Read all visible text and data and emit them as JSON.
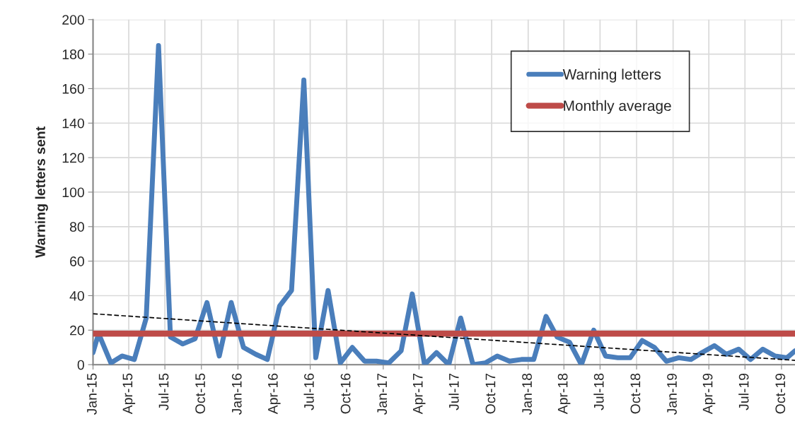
{
  "chart_data": {
    "type": "line",
    "ylabel": "Warning letters sent",
    "series": [
      {
        "name": "Warning letters",
        "color": "#4a7ebb",
        "x": [
          "2015-01-01",
          "2015-01-15",
          "2015-02-15",
          "2015-03-15",
          "2015-04-15",
          "2015-05-15",
          "2015-06-15",
          "2015-07-15",
          "2015-08-15",
          "2015-09-15",
          "2015-10-15",
          "2015-11-15",
          "2015-12-15",
          "2016-01-15",
          "2016-02-15",
          "2016-03-15",
          "2016-04-15",
          "2016-05-15",
          "2016-06-15",
          "2016-07-15",
          "2016-08-15",
          "2016-09-15",
          "2016-10-15",
          "2016-11-15",
          "2016-12-15",
          "2017-01-15",
          "2017-02-15",
          "2017-03-15",
          "2017-04-15",
          "2017-05-15",
          "2017-06-15",
          "2017-07-15",
          "2017-08-15",
          "2017-09-15",
          "2017-10-15",
          "2017-11-15",
          "2017-12-15",
          "2018-01-15",
          "2018-02-15",
          "2018-03-15",
          "2018-04-15",
          "2018-05-15",
          "2018-06-15",
          "2018-07-15",
          "2018-08-15",
          "2018-09-15",
          "2018-10-15",
          "2018-11-15",
          "2018-12-15",
          "2019-01-15",
          "2019-02-15",
          "2019-03-15",
          "2019-04-15",
          "2019-05-15",
          "2019-06-15",
          "2019-07-15",
          "2019-08-15",
          "2019-09-15",
          "2019-10-15",
          "2019-11-04"
        ],
        "values": [
          7,
          18,
          1,
          5,
          3,
          27,
          185,
          16,
          12,
          15,
          36,
          5,
          36,
          10,
          6,
          3,
          34,
          43,
          165,
          4,
          43,
          1,
          10,
          2,
          2,
          1,
          8,
          41,
          0,
          7,
          0,
          27,
          0,
          1,
          5,
          2,
          3,
          3,
          28,
          16,
          13,
          0,
          20,
          5,
          4,
          4,
          14,
          10,
          2,
          4,
          3,
          7,
          11,
          6,
          9,
          3,
          9,
          5,
          4,
          8
        ]
      },
      {
        "type": "line",
        "color": "#000000",
        "line_style": "dashed",
        "x": [
          "2015-01-01",
          "2019-11-04"
        ],
        "values": [
          29.5,
          2.5
        ]
      }
    ],
    "ref_lines": [
      {
        "axis": "y",
        "value": 18,
        "label": "Monthly average",
        "color": "#be4b48"
      }
    ],
    "xlim": [
      "2015-01-01",
      "2019-11-04"
    ],
    "xticks": [
      {
        "value": "2015-01-01",
        "label": "Jan-15"
      },
      {
        "value": "2015-04-01",
        "label": "Apr-15"
      },
      {
        "value": "2015-07-01",
        "label": "Jul-15"
      },
      {
        "value": "2015-10-01",
        "label": "Oct-15"
      },
      {
        "value": "2016-01-01",
        "label": "Jan-16"
      },
      {
        "value": "2016-04-01",
        "label": "Apr-16"
      },
      {
        "value": "2016-07-01",
        "label": "Jul-16"
      },
      {
        "value": "2016-10-01",
        "label": "Oct-16"
      },
      {
        "value": "2017-01-01",
        "label": "Jan-17"
      },
      {
        "value": "2017-04-01",
        "label": "Apr-17"
      },
      {
        "value": "2017-07-01",
        "label": "Jul-17"
      },
      {
        "value": "2017-10-01",
        "label": "Oct-17"
      },
      {
        "value": "2018-01-01",
        "label": "Jan-18"
      },
      {
        "value": "2018-04-01",
        "label": "Apr-18"
      },
      {
        "value": "2018-07-01",
        "label": "Jul-18"
      },
      {
        "value": "2018-10-01",
        "label": "Oct-18"
      },
      {
        "value": "2019-01-01",
        "label": "Jan-19"
      },
      {
        "value": "2019-04-01",
        "label": "Apr-19"
      },
      {
        "value": "2019-07-01",
        "label": "Jul-19"
      },
      {
        "value": "2019-10-01",
        "label": "Oct-19"
      }
    ],
    "ylim": [
      0,
      200
    ],
    "yticks": [
      0,
      20,
      40,
      60,
      80,
      100,
      120,
      140,
      160,
      180,
      200
    ],
    "grid": true,
    "legend": "top right",
    "marker": "none",
    "line_style": "solid"
  }
}
